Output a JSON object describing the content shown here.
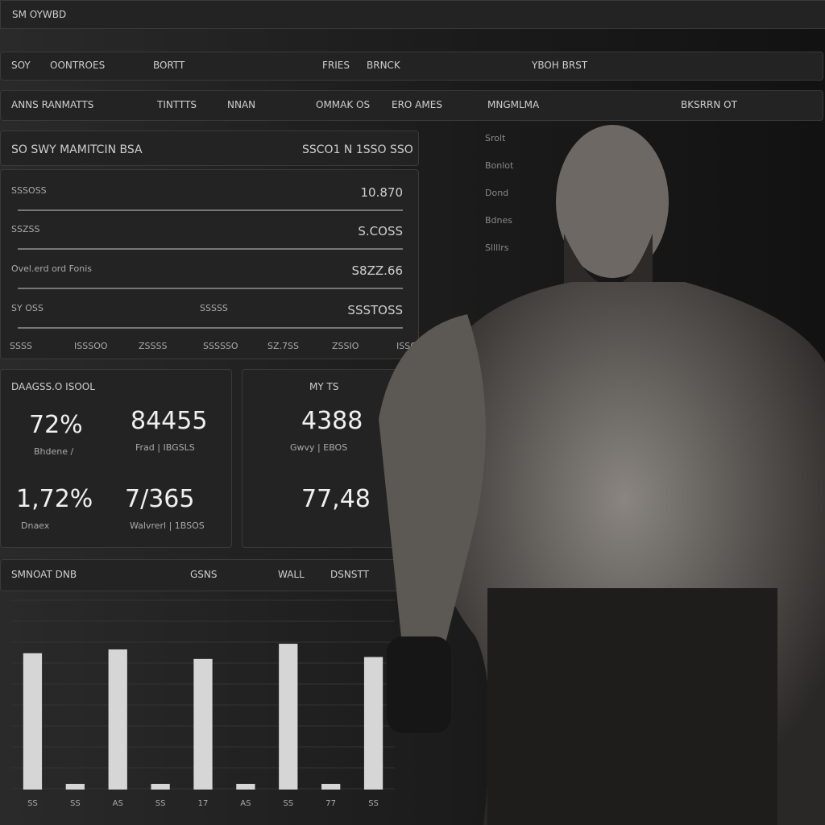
{
  "header": {
    "title": "SM OYWBD"
  },
  "tabs": [
    "SOY",
    "OONTROES",
    "BORTT",
    "FRIES",
    "BRNCK",
    "YBOH BRST"
  ],
  "subtabs": [
    "ANNS RANMATTS",
    "TINTTTS",
    "NNAN",
    "OMMAK OS",
    "ERO AMES",
    "MNGMLMA",
    "BKSRRN OT"
  ],
  "summary": {
    "title": "SO SWY MAMITCIN BSA",
    "meta": "SSCO1 N 1SSO SSO",
    "rows": [
      [
        "SSSOSS",
        "10.870"
      ],
      [
        "SSZSS",
        "S.COSS"
      ],
      [
        "Ovel.erd ord Fonis",
        "S8ZZ.66"
      ],
      [
        "SY OSS",
        "SSSSS",
        "SSSTOSS"
      ]
    ],
    "footer": [
      "SSSS",
      "ISSSOO",
      "ZSSSS",
      "SSSSSO",
      "SZ.7SS",
      "ZSSIO",
      "ISSOO"
    ]
  },
  "stats": {
    "title": "DAAGSS.O ISOOL",
    "items": [
      {
        "value": "72%",
        "label": "Bhdene /"
      },
      {
        "value": "84455",
        "label": "Frad | IBGSLS"
      },
      {
        "value": "1,72%",
        "label": "Dnaex"
      },
      {
        "value": "7/365",
        "label": "Walvrerl | 1BSOS"
      }
    ]
  },
  "mini": {
    "title": "MY TS",
    "items": [
      {
        "value": "4388",
        "label": "Gwvy | EBOS"
      },
      {
        "value": "77,48"
      }
    ]
  },
  "side": [
    "Srolt",
    "Bonlot",
    "Dond",
    "Bdnes",
    "Sllllrs"
  ],
  "chart_data": {
    "type": "bar",
    "headers": [
      "SMNOAT DNB",
      "GSNS",
      "WALL",
      "DSNSTT"
    ],
    "categories": [
      "SS",
      "SS",
      "AS",
      "SS",
      "17",
      "AS",
      "SS",
      "77",
      "SS"
    ],
    "values": [
      72,
      3,
      74,
      3,
      69,
      3,
      77,
      3,
      70
    ],
    "color": "#d6d6d6",
    "ylim": [
      0,
      100
    ]
  }
}
